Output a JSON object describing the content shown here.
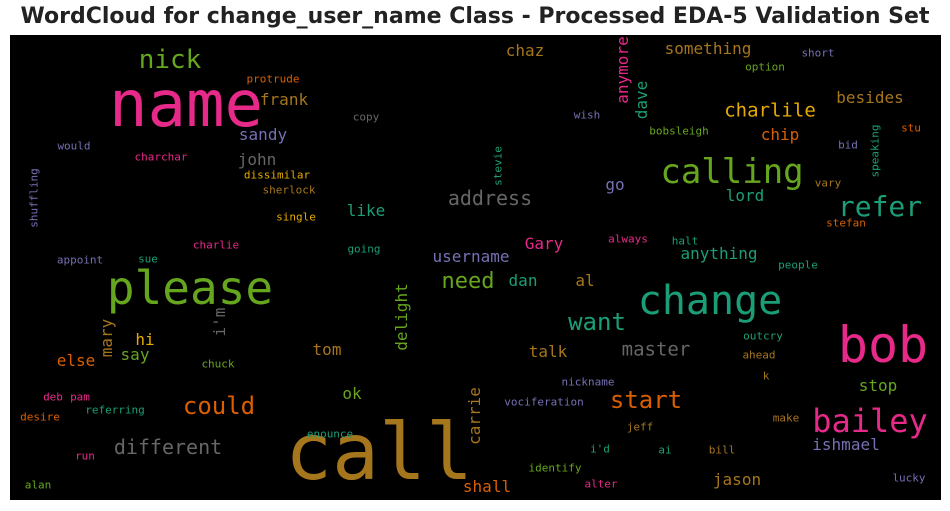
{
  "chart_data": {
    "type": "wordcloud",
    "title": "WordCloud for change_user_name Class - Processed EDA-5 Validation Set",
    "background": "#000000",
    "words": [
      {
        "text": "call",
        "color": "#a6761d",
        "orient": "h"
      },
      {
        "text": "name",
        "color": "#e7298a",
        "orient": "h"
      },
      {
        "text": "please",
        "color": "#66a61e",
        "orient": "h"
      },
      {
        "text": "change",
        "color": "#1b9e77",
        "orient": "h"
      },
      {
        "text": "bob",
        "color": "#e7298a",
        "orient": "h"
      },
      {
        "text": "calling",
        "color": "#66a61e",
        "orient": "h"
      },
      {
        "text": "bailey",
        "color": "#e7298a",
        "orient": "h"
      },
      {
        "text": "refer",
        "color": "#1b9e77",
        "orient": "h"
      },
      {
        "text": "nick",
        "color": "#66a61e",
        "orient": "h"
      },
      {
        "text": "could",
        "color": "#d95f02",
        "orient": "h"
      },
      {
        "text": "want",
        "color": "#1b9e77",
        "orient": "h"
      },
      {
        "text": "different",
        "color": "#666666",
        "orient": "h"
      },
      {
        "text": "start",
        "color": "#d95f02",
        "orient": "h"
      },
      {
        "text": "address",
        "color": "#666666",
        "orient": "h"
      },
      {
        "text": "need",
        "color": "#66a61e",
        "orient": "h"
      },
      {
        "text": "master",
        "color": "#666666",
        "orient": "h"
      },
      {
        "text": "charlile",
        "color": "#e6ab02",
        "orient": "h"
      },
      {
        "text": "username",
        "color": "#7570b3",
        "orient": "h"
      },
      {
        "text": "frank",
        "color": "#a6761d",
        "orient": "h"
      },
      {
        "text": "sandy",
        "color": "#7570b3",
        "orient": "h"
      },
      {
        "text": "john",
        "color": "#666666",
        "orient": "h"
      },
      {
        "text": "anymore",
        "color": "#e7298a",
        "orient": "v"
      },
      {
        "text": "dave",
        "color": "#1b9e77",
        "orient": "v"
      },
      {
        "text": "something",
        "color": "#a6761d",
        "orient": "h"
      },
      {
        "text": "chaz",
        "color": "#a6761d",
        "orient": "h"
      },
      {
        "text": "chip",
        "color": "#d95f02",
        "orient": "h"
      },
      {
        "text": "besides",
        "color": "#a6761d",
        "orient": "h"
      },
      {
        "text": "go",
        "color": "#7570b3",
        "orient": "h"
      },
      {
        "text": "lord",
        "color": "#1b9e77",
        "orient": "h"
      },
      {
        "text": "like",
        "color": "#1b9e77",
        "orient": "h"
      },
      {
        "text": "Gary",
        "color": "#e7298a",
        "orient": "h"
      },
      {
        "text": "anything",
        "color": "#1b9e77",
        "orient": "h"
      },
      {
        "text": "dan",
        "color": "#1b9e77",
        "orient": "h"
      },
      {
        "text": "al",
        "color": "#a6761d",
        "orient": "h"
      },
      {
        "text": "delight",
        "color": "#66a61e",
        "orient": "v"
      },
      {
        "text": "i'm",
        "color": "#666666",
        "orient": "v"
      },
      {
        "text": "mary",
        "color": "#a6761d",
        "orient": "v"
      },
      {
        "text": "hi",
        "color": "#e6ab02",
        "orient": "h"
      },
      {
        "text": "say",
        "color": "#66a61e",
        "orient": "h"
      },
      {
        "text": "else",
        "color": "#d95f02",
        "orient": "h"
      },
      {
        "text": "tom",
        "color": "#a6761d",
        "orient": "h"
      },
      {
        "text": "talk",
        "color": "#a6761d",
        "orient": "h"
      },
      {
        "text": "ok",
        "color": "#66a61e",
        "orient": "h"
      },
      {
        "text": "carrie",
        "color": "#a6761d",
        "orient": "v"
      },
      {
        "text": "shall",
        "color": "#d95f02",
        "orient": "h"
      },
      {
        "text": "jason",
        "color": "#a6761d",
        "orient": "h"
      },
      {
        "text": "stop",
        "color": "#66a61e",
        "orient": "h"
      },
      {
        "text": "ishmael",
        "color": "#7570b3",
        "orient": "h"
      },
      {
        "text": "protrude",
        "color": "#d95f02",
        "orient": "h"
      },
      {
        "text": "copy",
        "color": "#666666",
        "orient": "h"
      },
      {
        "text": "wish",
        "color": "#7570b3",
        "orient": "h"
      },
      {
        "text": "short",
        "color": "#7570b3",
        "orient": "h"
      },
      {
        "text": "option",
        "color": "#66a61e",
        "orient": "h"
      },
      {
        "text": "bobsleigh",
        "color": "#66a61e",
        "orient": "h"
      },
      {
        "text": "stu",
        "color": "#d95f02",
        "orient": "h"
      },
      {
        "text": "bid",
        "color": "#7570b3",
        "orient": "h"
      },
      {
        "text": "speaking",
        "color": "#1b9e77",
        "orient": "v"
      },
      {
        "text": "would",
        "color": "#7570b3",
        "orient": "h"
      },
      {
        "text": "charchar",
        "color": "#e7298a",
        "orient": "h"
      },
      {
        "text": "dissimilar",
        "color": "#e6ab02",
        "orient": "h"
      },
      {
        "text": "sherlock",
        "color": "#a6761d",
        "orient": "h"
      },
      {
        "text": "stevie",
        "color": "#1b9e77",
        "orient": "v"
      },
      {
        "text": "vary",
        "color": "#a6761d",
        "orient": "h"
      },
      {
        "text": "stefan",
        "color": "#d95f02",
        "orient": "h"
      },
      {
        "text": "shuffling",
        "color": "#7570b3",
        "orient": "v"
      },
      {
        "text": "single",
        "color": "#e6ab02",
        "orient": "h"
      },
      {
        "text": "charlie",
        "color": "#e7298a",
        "orient": "h"
      },
      {
        "text": "going",
        "color": "#1b9e77",
        "orient": "h"
      },
      {
        "text": "always",
        "color": "#e7298a",
        "orient": "h"
      },
      {
        "text": "halt",
        "color": "#1b9e77",
        "orient": "h"
      },
      {
        "text": "appoint",
        "color": "#7570b3",
        "orient": "h"
      },
      {
        "text": "sue",
        "color": "#1b9e77",
        "orient": "h"
      },
      {
        "text": "people",
        "color": "#1b9e77",
        "orient": "h"
      },
      {
        "text": "outcry",
        "color": "#1b9e77",
        "orient": "h"
      },
      {
        "text": "chuck",
        "color": "#66a61e",
        "orient": "h"
      },
      {
        "text": "ahead",
        "color": "#a6761d",
        "orient": "h"
      },
      {
        "text": "k",
        "color": "#a6761d",
        "orient": "h"
      },
      {
        "text": "nickname",
        "color": "#7570b3",
        "orient": "h"
      },
      {
        "text": "deb",
        "color": "#e7298a",
        "orient": "h"
      },
      {
        "text": "pam",
        "color": "#e7298a",
        "orient": "h"
      },
      {
        "text": "desire",
        "color": "#d95f02",
        "orient": "h"
      },
      {
        "text": "referring",
        "color": "#1b9e77",
        "orient": "h"
      },
      {
        "text": "vociferation",
        "color": "#7570b3",
        "orient": "h"
      },
      {
        "text": "make",
        "color": "#a6761d",
        "orient": "h"
      },
      {
        "text": "jeff",
        "color": "#a6761d",
        "orient": "h"
      },
      {
        "text": "enounce",
        "color": "#1b9e77",
        "orient": "h"
      },
      {
        "text": "run",
        "color": "#e7298a",
        "orient": "h"
      },
      {
        "text": "i'd",
        "color": "#1b9e77",
        "orient": "h"
      },
      {
        "text": "ai",
        "color": "#1b9e77",
        "orient": "h"
      },
      {
        "text": "bill",
        "color": "#a6761d",
        "orient": "h"
      },
      {
        "text": "identify",
        "color": "#66a61e",
        "orient": "h"
      },
      {
        "text": "alter",
        "color": "#e7298a",
        "orient": "h"
      },
      {
        "text": "lucky",
        "color": "#7570b3",
        "orient": "h"
      },
      {
        "text": "alan",
        "color": "#66a61e",
        "orient": "h"
      }
    ]
  }
}
